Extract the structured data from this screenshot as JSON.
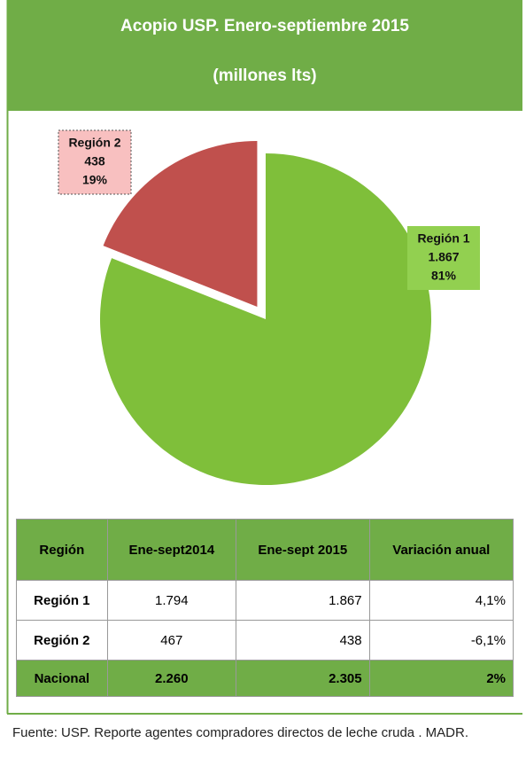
{
  "chart_data": {
    "type": "pie",
    "title": "Acopio USP. Enero-septiembre 2015",
    "subtitle": "(millones lts)",
    "categories": [
      "Región 1",
      "Región 2"
    ],
    "values": [
      1867,
      438
    ],
    "value_labels": [
      "1.867",
      "438"
    ],
    "percents": [
      81,
      19
    ],
    "percent_labels": [
      "81%",
      "19%"
    ],
    "colors": [
      "#7fbf3a",
      "#c0504d"
    ],
    "label_colors": [
      "#92d050",
      "#f8c0c0"
    ],
    "exploded": [
      false,
      true
    ]
  },
  "table": {
    "header": [
      "Región",
      "Ene-sept2014",
      "Ene-sept 2015",
      "Variación anual"
    ],
    "rows": [
      [
        "Región 1",
        "1.794",
        "1.867",
        "4,1%"
      ],
      [
        "Región 2",
        "467",
        "438",
        "-6,1%"
      ],
      [
        "Nacional",
        "2.260",
        "2.305",
        "2%"
      ]
    ]
  },
  "source": "Fuente: USP. Reporte agentes compradores directos de leche cruda . MADR."
}
